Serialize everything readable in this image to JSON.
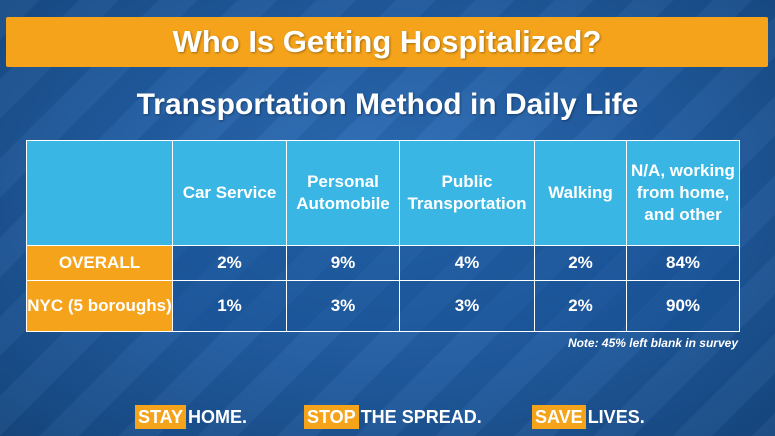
{
  "title": "Who Is Getting Hospitalized?",
  "subtitle": "Transportation Method in Daily Life",
  "table": {
    "columns": [
      "",
      "Car Service",
      "Personal Automobile",
      "Public Transportation",
      "Walking",
      "N/A, working from home, and other"
    ],
    "rows": [
      {
        "label": "OVERALL",
        "values": [
          "2%",
          "9%",
          "4%",
          "2%",
          "84%"
        ]
      },
      {
        "label": "NYC (5 boroughs)",
        "values": [
          "1%",
          "3%",
          "3%",
          "2%",
          "90%"
        ]
      }
    ]
  },
  "note": "Note: 45% left blank in survey",
  "footer": [
    {
      "highlight": "STAY",
      "rest": "HOME."
    },
    {
      "highlight": "STOP",
      "rest": "THE SPREAD."
    },
    {
      "highlight": "SAVE",
      "rest": "LIVES."
    }
  ],
  "colors": {
    "accent_orange": "#f5a31a",
    "header_cyan": "#39b6e4",
    "background_blue": "#1f5a9e"
  }
}
